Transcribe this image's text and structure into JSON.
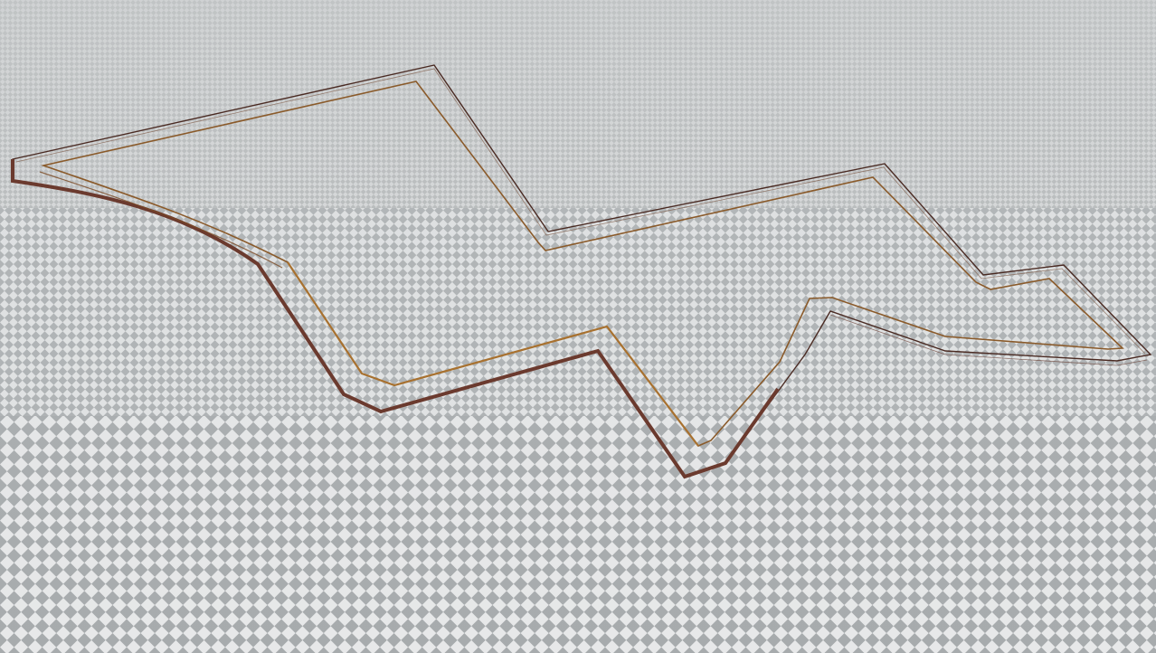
{
  "scene": {
    "ground_colors": {
      "light": "#e7e8e9",
      "dark": "#a7abad",
      "haze": "#c9cccd"
    },
    "track": {
      "outer_wall_color": "#4a2a22",
      "outer_wall_shadow": "#6b3a2e",
      "inner_wall_color": "#8a5a2a",
      "inner_wall_highlight": "#a8712f"
    }
  }
}
